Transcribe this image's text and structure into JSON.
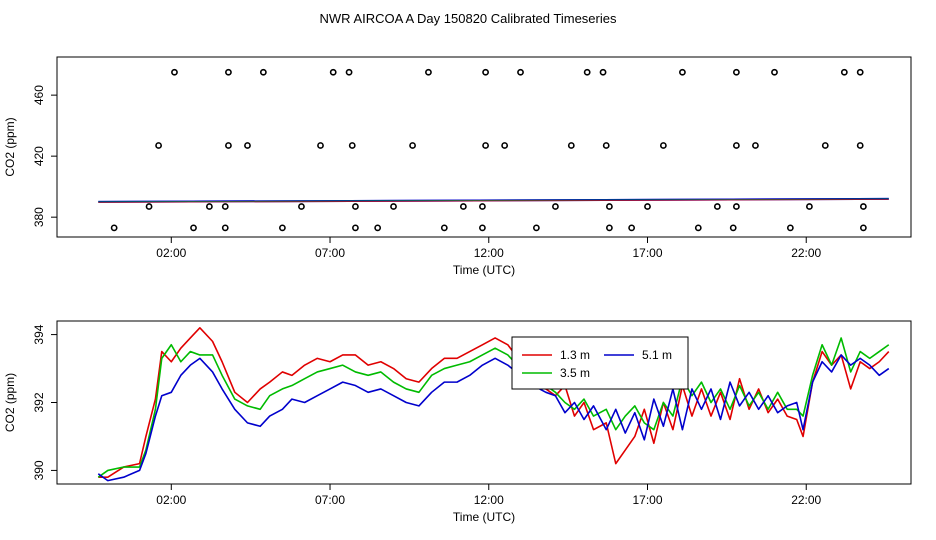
{
  "page_title": "NWR AIRCOA A  Day 150820  Calibrated Timeseries",
  "colors": {
    "s1": "#e00000",
    "s2": "#00bb00",
    "s3": "#0000cc",
    "markers": "#000000"
  },
  "chart_data": [
    {
      "type": "scatter",
      "title": "",
      "xlabel": "Time (UTC)",
      "ylabel": "CO2 (ppm)",
      "xlim": [
        -1.6,
        25.3
      ],
      "ylim": [
        367,
        485
      ],
      "xticks": [
        2,
        7,
        12,
        17,
        22
      ],
      "xtick_labels": [
        "02:00",
        "07:00",
        "12:00",
        "17:00",
        "22:00"
      ],
      "yticks": [
        380,
        420,
        460
      ],
      "ytick_labels": [
        "380",
        "420",
        "460"
      ],
      "mean_line": {
        "x": [
          -0.3,
          24.6
        ],
        "y": [
          390,
          392
        ]
      },
      "points": [
        [
          0.2,
          373
        ],
        [
          1.3,
          387
        ],
        [
          1.6,
          427
        ],
        [
          2.1,
          475
        ],
        [
          2.7,
          373
        ],
        [
          3.2,
          387
        ],
        [
          3.7,
          373
        ],
        [
          3.7,
          387
        ],
        [
          3.8,
          427
        ],
        [
          3.8,
          475
        ],
        [
          4.4,
          427
        ],
        [
          4.9,
          475
        ],
        [
          5.5,
          373
        ],
        [
          6.1,
          387
        ],
        [
          6.7,
          427
        ],
        [
          7.1,
          475
        ],
        [
          7.6,
          475
        ],
        [
          7.7,
          427
        ],
        [
          7.8,
          387
        ],
        [
          7.8,
          373
        ],
        [
          8.5,
          373
        ],
        [
          9.0,
          387
        ],
        [
          9.6,
          427
        ],
        [
          10.1,
          475
        ],
        [
          10.6,
          373
        ],
        [
          11.2,
          387
        ],
        [
          11.8,
          387
        ],
        [
          11.8,
          373
        ],
        [
          11.9,
          427
        ],
        [
          11.9,
          475
        ],
        [
          12.5,
          427
        ],
        [
          13.0,
          475
        ],
        [
          13.5,
          373
        ],
        [
          14.1,
          387
        ],
        [
          14.6,
          427
        ],
        [
          15.1,
          475
        ],
        [
          15.6,
          475
        ],
        [
          15.7,
          427
        ],
        [
          15.8,
          387
        ],
        [
          15.8,
          373
        ],
        [
          16.5,
          373
        ],
        [
          17.0,
          387
        ],
        [
          17.5,
          427
        ],
        [
          18.1,
          475
        ],
        [
          18.6,
          373
        ],
        [
          19.2,
          387
        ],
        [
          19.7,
          373
        ],
        [
          19.8,
          387
        ],
        [
          19.8,
          427
        ],
        [
          19.8,
          475
        ],
        [
          20.4,
          427
        ],
        [
          21.0,
          475
        ],
        [
          21.5,
          373
        ],
        [
          22.1,
          387
        ],
        [
          22.6,
          427
        ],
        [
          23.2,
          475
        ],
        [
          23.7,
          475
        ],
        [
          23.7,
          427
        ],
        [
          23.8,
          387
        ],
        [
          23.8,
          373
        ]
      ]
    },
    {
      "type": "line",
      "title": "",
      "xlabel": "Time (UTC)",
      "ylabel": "CO2 (ppm)",
      "xlim": [
        -1.6,
        25.3
      ],
      "ylim": [
        389.6,
        394.4
      ],
      "xticks": [
        2,
        7,
        12,
        17,
        22
      ],
      "xtick_labels": [
        "02:00",
        "07:00",
        "12:00",
        "17:00",
        "22:00"
      ],
      "yticks": [
        390,
        392,
        394
      ],
      "ytick_labels": [
        "390",
        "392",
        "394"
      ],
      "legend": {
        "position": "top-right",
        "entries": [
          "1.3 m",
          "3.5 m",
          "5.1 m"
        ]
      },
      "series": [
        {
          "name": "1.3 m",
          "x": [
            -0.3,
            0,
            0.5,
            1,
            1.2,
            1.5,
            1.7,
            2,
            2.3,
            2.6,
            2.9,
            3.3,
            3.6,
            4,
            4.4,
            4.8,
            5.1,
            5.5,
            5.8,
            6.2,
            6.6,
            7,
            7.4,
            7.8,
            8.2,
            8.6,
            9,
            9.4,
            9.8,
            10.2,
            10.6,
            11,
            11.4,
            11.8,
            12.2,
            12.6,
            13,
            13.4,
            13.8,
            14.1,
            14.4,
            14.7,
            15,
            15.3,
            15.7,
            16,
            16.3,
            16.6,
            16.9,
            17.2,
            17.5,
            17.8,
            18.1,
            18.4,
            18.7,
            19,
            19.3,
            19.6,
            19.9,
            20.2,
            20.5,
            20.8,
            21.1,
            21.4,
            21.7,
            21.9,
            22.2,
            22.5,
            22.8,
            23.1,
            23.4,
            23.7,
            24,
            24.3,
            24.6
          ],
          "y": [
            389.8,
            389.8,
            390.1,
            390.2,
            391,
            392.1,
            393.5,
            393.2,
            393.6,
            393.9,
            394.2,
            393.8,
            393.2,
            392.3,
            392,
            392.4,
            392.6,
            392.9,
            392.8,
            393.1,
            393.3,
            393.2,
            393.4,
            393.4,
            393.1,
            393.2,
            393,
            392.7,
            392.6,
            393,
            393.3,
            393.3,
            393.5,
            393.7,
            393.9,
            393.7,
            393.2,
            392.5,
            392.4,
            392.2,
            392.5,
            391.6,
            392,
            391.2,
            391.4,
            390.2,
            390.6,
            391,
            391.8,
            390.8,
            392,
            391.2,
            392.5,
            391.6,
            392.4,
            391.6,
            392.3,
            391.5,
            392.7,
            391.8,
            392.4,
            391.7,
            392.1,
            391.6,
            391.5,
            391,
            392.6,
            393.5,
            393.1,
            393.4,
            392.4,
            393.2,
            393,
            393.2,
            393.5
          ]
        },
        {
          "name": "3.5 m",
          "x": [
            -0.3,
            0,
            0.5,
            1,
            1.2,
            1.5,
            1.7,
            2,
            2.3,
            2.6,
            2.9,
            3.3,
            3.6,
            4,
            4.4,
            4.8,
            5.1,
            5.5,
            5.8,
            6.2,
            6.6,
            7,
            7.4,
            7.8,
            8.2,
            8.6,
            9,
            9.4,
            9.8,
            10.2,
            10.6,
            11,
            11.4,
            11.8,
            12.2,
            12.6,
            13,
            13.4,
            13.8,
            14.1,
            14.4,
            14.7,
            15,
            15.3,
            15.7,
            16,
            16.3,
            16.6,
            16.9,
            17.2,
            17.5,
            17.8,
            18.1,
            18.4,
            18.7,
            19,
            19.3,
            19.6,
            19.9,
            20.2,
            20.5,
            20.8,
            21.1,
            21.4,
            21.7,
            21.9,
            22.2,
            22.5,
            22.8,
            23.1,
            23.4,
            23.7,
            24,
            24.3,
            24.6
          ],
          "y": [
            389.8,
            390,
            390.1,
            390.1,
            390.6,
            391.8,
            393.3,
            393.7,
            393.2,
            393.5,
            393.4,
            393.4,
            392.8,
            392.1,
            391.9,
            391.8,
            392.2,
            392.4,
            392.5,
            392.7,
            392.9,
            393,
            393.1,
            392.9,
            392.8,
            392.9,
            392.6,
            392.4,
            392.3,
            392.8,
            393,
            393.1,
            393.2,
            393.4,
            393.6,
            393.4,
            393,
            392.7,
            392.5,
            392.3,
            392,
            391.8,
            392.1,
            391.6,
            391.8,
            391.2,
            391.6,
            391.9,
            391.4,
            391.2,
            392,
            391.6,
            392.7,
            392.2,
            392.6,
            392,
            392.4,
            391.8,
            392.5,
            391.9,
            392.3,
            391.8,
            392.3,
            391.8,
            391.8,
            391.6,
            392.8,
            393.7,
            393.1,
            393.9,
            392.9,
            393.5,
            393.3,
            393.5,
            393.7
          ]
        },
        {
          "name": "5.1 m",
          "x": [
            -0.3,
            0,
            0.5,
            1,
            1.2,
            1.5,
            1.7,
            2,
            2.3,
            2.6,
            2.9,
            3.3,
            3.6,
            4,
            4.4,
            4.8,
            5.1,
            5.5,
            5.8,
            6.2,
            6.6,
            7,
            7.4,
            7.8,
            8.2,
            8.6,
            9,
            9.4,
            9.8,
            10.2,
            10.6,
            11,
            11.4,
            11.8,
            12.2,
            12.6,
            13,
            13.4,
            13.8,
            14.1,
            14.4,
            14.7,
            15,
            15.3,
            15.7,
            16,
            16.3,
            16.6,
            16.9,
            17.2,
            17.5,
            17.8,
            18.1,
            18.4,
            18.7,
            19,
            19.3,
            19.6,
            19.9,
            20.2,
            20.5,
            20.8,
            21.1,
            21.4,
            21.7,
            21.9,
            22.2,
            22.5,
            22.8,
            23.1,
            23.4,
            23.7,
            24,
            24.3,
            24.6
          ],
          "y": [
            389.9,
            389.7,
            389.8,
            390,
            390.5,
            391.6,
            392.2,
            392.3,
            392.8,
            393.1,
            393.3,
            392.9,
            392.4,
            391.8,
            391.4,
            391.3,
            391.6,
            391.8,
            392.1,
            392,
            392.2,
            392.4,
            392.6,
            392.5,
            392.3,
            392.4,
            392.2,
            392,
            391.9,
            392.3,
            392.6,
            392.6,
            392.8,
            393.1,
            393.3,
            393.1,
            392.8,
            392.5,
            392.3,
            392.2,
            391.7,
            392,
            391.5,
            391.9,
            391.2,
            391.8,
            391.1,
            391.7,
            390.9,
            392.1,
            391.3,
            392.4,
            391.2,
            392.4,
            391.8,
            392.4,
            391.5,
            392.6,
            391.9,
            392.3,
            391.8,
            392.2,
            391.7,
            391.9,
            392,
            391.2,
            392.6,
            393.2,
            392.9,
            393.4,
            393.1,
            393.3,
            393.1,
            392.8,
            393
          ]
        }
      ]
    }
  ]
}
